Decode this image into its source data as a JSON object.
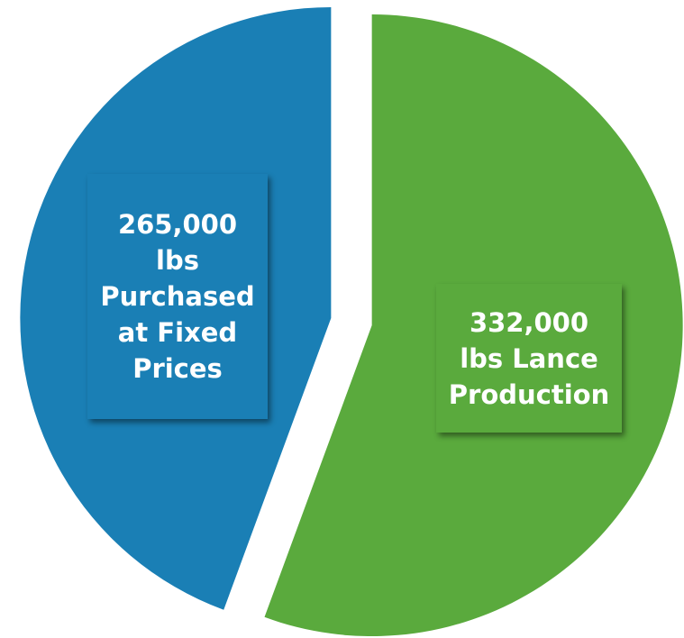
{
  "chart_data": {
    "type": "pie",
    "categories": [
      "lbs Purchased at Fixed Prices",
      "lbs Lance Production"
    ],
    "values": [
      265000,
      332000
    ],
    "value_labels": [
      "265,000",
      "332,000"
    ],
    "colors": [
      "#1a7fb5",
      "#5aaa3d"
    ]
  }
}
